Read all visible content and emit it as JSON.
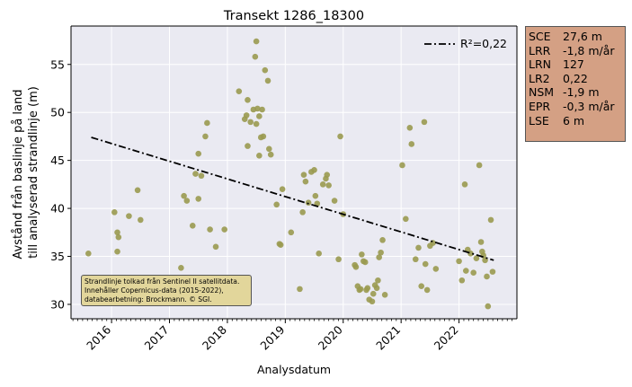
{
  "chart_data": {
    "type": "scatter",
    "title": "Transekt 1286_18300",
    "xlabel": "Analysdatum",
    "ylabel_lines": [
      "Avstånd från baslinje på land",
      "till analyserad strandlinje (m)"
    ],
    "xlim": [
      2015.3,
      2023.0
    ],
    "ylim": [
      28.5,
      59.0
    ],
    "x_ticks": [
      2016,
      2017,
      2018,
      2019,
      2020,
      2021,
      2022
    ],
    "x_tick_labels": [
      "2016",
      "2017",
      "2018",
      "2019",
      "2020",
      "2021",
      "2022"
    ],
    "y_ticks": [
      30,
      35,
      40,
      45,
      50,
      55
    ],
    "y_tick_labels": [
      "30",
      "35",
      "40",
      "45",
      "50",
      "55"
    ],
    "grid": true,
    "legend_position": "top-right",
    "point_color": "#9a9a50",
    "trend_color": "#000000",
    "trend_line": {
      "label": "R²=0,22",
      "x": [
        2015.65,
        2022.6
      ],
      "y": [
        47.4,
        34.6
      ]
    },
    "points": [
      [
        2015.6,
        35.3
      ],
      [
        2016.05,
        39.6
      ],
      [
        2016.1,
        37.5
      ],
      [
        2016.12,
        37.0
      ],
      [
        2016.1,
        35.5
      ],
      [
        2016.3,
        39.2
      ],
      [
        2016.45,
        41.9
      ],
      [
        2016.5,
        38.8
      ],
      [
        2017.2,
        33.8
      ],
      [
        2017.25,
        41.3
      ],
      [
        2017.3,
        40.8
      ],
      [
        2017.4,
        38.2
      ],
      [
        2017.45,
        43.6
      ],
      [
        2017.5,
        45.7
      ],
      [
        2017.55,
        43.4
      ],
      [
        2017.5,
        41.0
      ],
      [
        2017.65,
        48.9
      ],
      [
        2017.62,
        47.5
      ],
      [
        2017.7,
        37.8
      ],
      [
        2017.8,
        36.0
      ],
      [
        2017.95,
        37.8
      ],
      [
        2018.2,
        52.2
      ],
      [
        2018.3,
        49.3
      ],
      [
        2018.33,
        49.7
      ],
      [
        2018.35,
        51.3
      ],
      [
        2018.4,
        49.0
      ],
      [
        2018.45,
        50.3
      ],
      [
        2018.5,
        57.4
      ],
      [
        2018.48,
        55.8
      ],
      [
        2018.52,
        50.4
      ],
      [
        2018.5,
        48.8
      ],
      [
        2018.55,
        49.6
      ],
      [
        2018.6,
        50.3
      ],
      [
        2018.62,
        47.5
      ],
      [
        2018.58,
        47.4
      ],
      [
        2018.65,
        54.4
      ],
      [
        2018.7,
        53.3
      ],
      [
        2018.72,
        46.2
      ],
      [
        2018.75,
        45.6
      ],
      [
        2018.35,
        46.5
      ],
      [
        2018.55,
        45.5
      ],
      [
        2018.85,
        40.4
      ],
      [
        2018.9,
        36.3
      ],
      [
        2018.92,
        36.2
      ],
      [
        2018.95,
        42.0
      ],
      [
        2019.1,
        37.5
      ],
      [
        2019.25,
        31.6
      ],
      [
        2019.3,
        39.6
      ],
      [
        2019.32,
        43.5
      ],
      [
        2019.35,
        42.8
      ],
      [
        2019.4,
        40.6
      ],
      [
        2019.45,
        43.8
      ],
      [
        2019.5,
        44.0
      ],
      [
        2019.52,
        41.3
      ],
      [
        2019.55,
        40.5
      ],
      [
        2019.58,
        35.3
      ],
      [
        2019.65,
        42.5
      ],
      [
        2019.7,
        43.1
      ],
      [
        2019.72,
        43.5
      ],
      [
        2019.75,
        42.4
      ],
      [
        2019.85,
        40.8
      ],
      [
        2019.92,
        34.7
      ],
      [
        2019.95,
        47.5
      ],
      [
        2020.0,
        39.4
      ],
      [
        2020.2,
        34.1
      ],
      [
        2020.22,
        33.9
      ],
      [
        2020.25,
        31.9
      ],
      [
        2020.28,
        31.5
      ],
      [
        2020.3,
        31.6
      ],
      [
        2020.32,
        35.2
      ],
      [
        2020.35,
        34.5
      ],
      [
        2020.38,
        34.4
      ],
      [
        2020.4,
        31.5
      ],
      [
        2020.42,
        31.7
      ],
      [
        2020.45,
        30.5
      ],
      [
        2020.5,
        30.3
      ],
      [
        2020.52,
        31.1
      ],
      [
        2020.55,
        32.0
      ],
      [
        2020.58,
        31.7
      ],
      [
        2020.6,
        32.5
      ],
      [
        2020.62,
        34.9
      ],
      [
        2020.65,
        35.4
      ],
      [
        2020.68,
        36.7
      ],
      [
        2020.72,
        31.0
      ],
      [
        2021.02,
        44.5
      ],
      [
        2021.08,
        38.9
      ],
      [
        2021.15,
        48.4
      ],
      [
        2021.18,
        46.7
      ],
      [
        2021.25,
        34.7
      ],
      [
        2021.3,
        35.9
      ],
      [
        2021.35,
        31.9
      ],
      [
        2021.4,
        49.0
      ],
      [
        2021.42,
        34.2
      ],
      [
        2021.45,
        31.5
      ],
      [
        2021.5,
        36.1
      ],
      [
        2021.55,
        36.4
      ],
      [
        2021.6,
        33.7
      ],
      [
        2022.0,
        34.5
      ],
      [
        2022.05,
        32.5
      ],
      [
        2022.1,
        42.5
      ],
      [
        2022.12,
        33.5
      ],
      [
        2022.15,
        35.7
      ],
      [
        2022.2,
        35.3
      ],
      [
        2022.25,
        33.3
      ],
      [
        2022.3,
        34.8
      ],
      [
        2022.35,
        44.5
      ],
      [
        2022.38,
        36.5
      ],
      [
        2022.4,
        35.5
      ],
      [
        2022.42,
        35.1
      ],
      [
        2022.45,
        34.6
      ],
      [
        2022.48,
        32.9
      ],
      [
        2022.5,
        29.8
      ],
      [
        2022.55,
        38.8
      ],
      [
        2022.58,
        33.4
      ]
    ]
  },
  "stats": [
    {
      "name": "SCE",
      "value": "27,6 m"
    },
    {
      "name": "LRR",
      "value": "-1,8 m/år"
    },
    {
      "name": "LRN",
      "value": "127"
    },
    {
      "name": "LR2",
      "value": "0,22"
    },
    {
      "name": "NSM",
      "value": "-1,9 m"
    },
    {
      "name": "EPR",
      "value": "-0,3 m/år"
    },
    {
      "name": "LSE",
      "value": "6 m"
    }
  ],
  "credit": [
    "Strandlinje tolkad från Sentinel II satellitdata.",
    "Innehåller Copernicus-data (2015-2022),",
    "databearbetning: Brockmann. © SGI."
  ]
}
